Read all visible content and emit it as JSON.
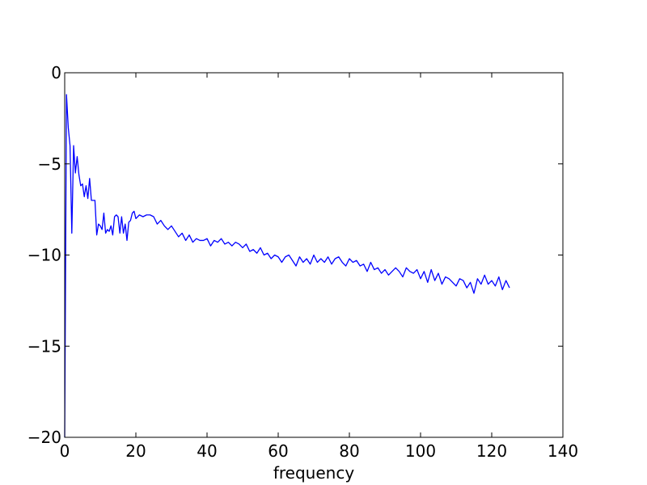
{
  "chart_data": {
    "type": "line",
    "title": "",
    "xlabel": "frequency",
    "ylabel": "",
    "xlim": [
      0,
      140
    ],
    "ylim": [
      -20,
      0
    ],
    "xticks": [
      "0",
      "20",
      "40",
      "60",
      "80",
      "100",
      "120",
      "140"
    ],
    "yticks": [
      "0",
      "−5",
      "−10",
      "−15",
      "−20"
    ],
    "grid": false,
    "series": [
      {
        "color": "#0000ff",
        "x": [
          0,
          0.5,
          1.0,
          1.5,
          2.0,
          2.5,
          3.0,
          3.5,
          4.0,
          4.5,
          5.0,
          5.5,
          6.0,
          6.5,
          7.0,
          7.5,
          8.0,
          8.5,
          9.0,
          9.5,
          10.0,
          10.5,
          11.0,
          11.5,
          12.0,
          12.5,
          13.0,
          13.5,
          14.0,
          14.5,
          15.0,
          15.5,
          16.0,
          16.5,
          17.0,
          17.5,
          18.0,
          18.5,
          19.0,
          19.5,
          20.0,
          21.0,
          22.0,
          23.0,
          24.0,
          25.0,
          26.0,
          27.0,
          28.0,
          29.0,
          30.0,
          31.0,
          32.0,
          33.0,
          34.0,
          35.0,
          36.0,
          37.0,
          38.0,
          39.0,
          40.0,
          41.0,
          42.0,
          43.0,
          44.0,
          45.0,
          46.0,
          47.0,
          48.0,
          49.0,
          50.0,
          51.0,
          52.0,
          53.0,
          54.0,
          55.0,
          56.0,
          57.0,
          58.0,
          59.0,
          60.0,
          61.0,
          62.0,
          63.0,
          64.0,
          65.0,
          66.0,
          67.0,
          68.0,
          69.0,
          70.0,
          71.0,
          72.0,
          73.0,
          74.0,
          75.0,
          76.0,
          77.0,
          78.0,
          79.0,
          80.0,
          81.0,
          82.0,
          83.0,
          84.0,
          85.0,
          86.0,
          87.0,
          88.0,
          89.0,
          90.0,
          91.0,
          92.0,
          93.0,
          94.0,
          95.0,
          96.0,
          97.0,
          98.0,
          99.0,
          100.0,
          101.0,
          102.0,
          103.0,
          104.0,
          105.0,
          106.0,
          107.0,
          108.0,
          109.0,
          110.0,
          111.0,
          112.0,
          113.0,
          114.0,
          115.0,
          116.0,
          117.0,
          118.0,
          119.0,
          120.0,
          121.0,
          122.0,
          123.0,
          124.0,
          125.0
        ],
        "y": [
          -20.0,
          -1.2,
          -3.0,
          -4.0,
          -8.8,
          -4.0,
          -5.5,
          -4.6,
          -5.6,
          -6.2,
          -6.1,
          -6.8,
          -6.2,
          -6.9,
          -5.8,
          -7.0,
          -7.0,
          -7.0,
          -8.9,
          -8.3,
          -8.4,
          -8.6,
          -7.7,
          -8.8,
          -8.6,
          -8.7,
          -8.4,
          -8.9,
          -7.9,
          -7.8,
          -7.9,
          -8.8,
          -7.9,
          -8.8,
          -8.3,
          -9.2,
          -8.2,
          -8.1,
          -7.7,
          -7.6,
          -8.0,
          -7.8,
          -7.9,
          -7.8,
          -7.8,
          -7.9,
          -8.3,
          -8.1,
          -8.4,
          -8.6,
          -8.4,
          -8.7,
          -9.0,
          -8.8,
          -9.2,
          -8.9,
          -9.3,
          -9.1,
          -9.2,
          -9.2,
          -9.1,
          -9.5,
          -9.2,
          -9.3,
          -9.1,
          -9.4,
          -9.3,
          -9.5,
          -9.3,
          -9.4,
          -9.6,
          -9.4,
          -9.8,
          -9.7,
          -9.9,
          -9.6,
          -10.0,
          -9.9,
          -10.2,
          -10.0,
          -10.1,
          -10.4,
          -10.1,
          -10.0,
          -10.3,
          -10.6,
          -10.1,
          -10.4,
          -10.2,
          -10.5,
          -10.0,
          -10.4,
          -10.2,
          -10.4,
          -10.1,
          -10.5,
          -10.2,
          -10.1,
          -10.4,
          -10.6,
          -10.2,
          -10.4,
          -10.3,
          -10.6,
          -10.5,
          -10.9,
          -10.4,
          -10.8,
          -10.7,
          -11.0,
          -10.8,
          -11.1,
          -10.9,
          -10.7,
          -10.9,
          -11.2,
          -10.7,
          -10.9,
          -11.0,
          -10.8,
          -11.3,
          -10.9,
          -11.5,
          -10.8,
          -11.4,
          -11.0,
          -11.6,
          -11.2,
          -11.3,
          -11.5,
          -11.7,
          -11.3,
          -11.4,
          -11.8,
          -11.5,
          -12.1,
          -11.3,
          -11.6,
          -11.1,
          -11.6,
          -11.4,
          -11.7,
          -11.2,
          -11.9,
          -11.4,
          -11.8
        ]
      }
    ]
  }
}
